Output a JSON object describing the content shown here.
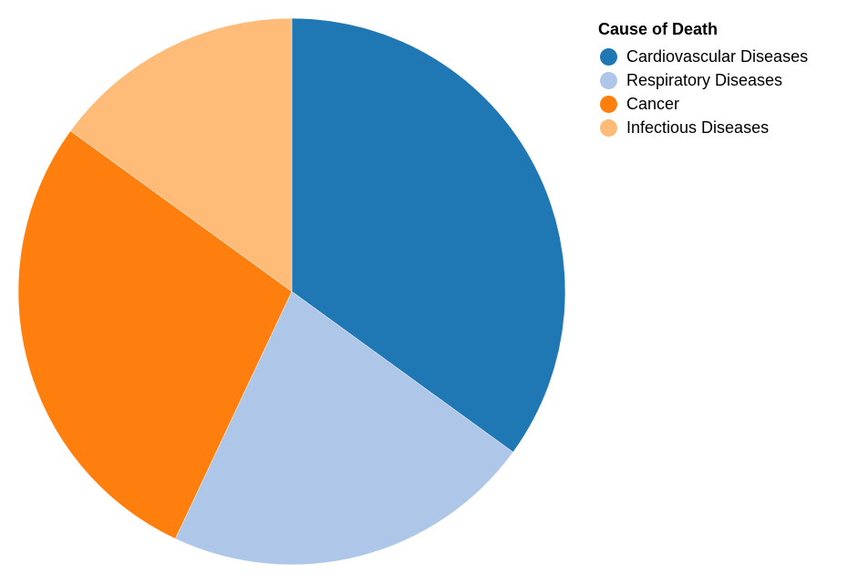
{
  "chart_data": {
    "type": "pie",
    "legend_title": "Cause of Death",
    "legend_position": "top-right",
    "categories": [
      "Cardiovascular Diseases",
      "Respiratory Diseases",
      "Cancer",
      "Infectious Diseases"
    ],
    "values": [
      35,
      22,
      28,
      15
    ],
    "colors": [
      "#1f77b4",
      "#aec7e8",
      "#ff7f0e",
      "#ffbb78"
    ],
    "start": "top",
    "direction": "clockwise"
  }
}
